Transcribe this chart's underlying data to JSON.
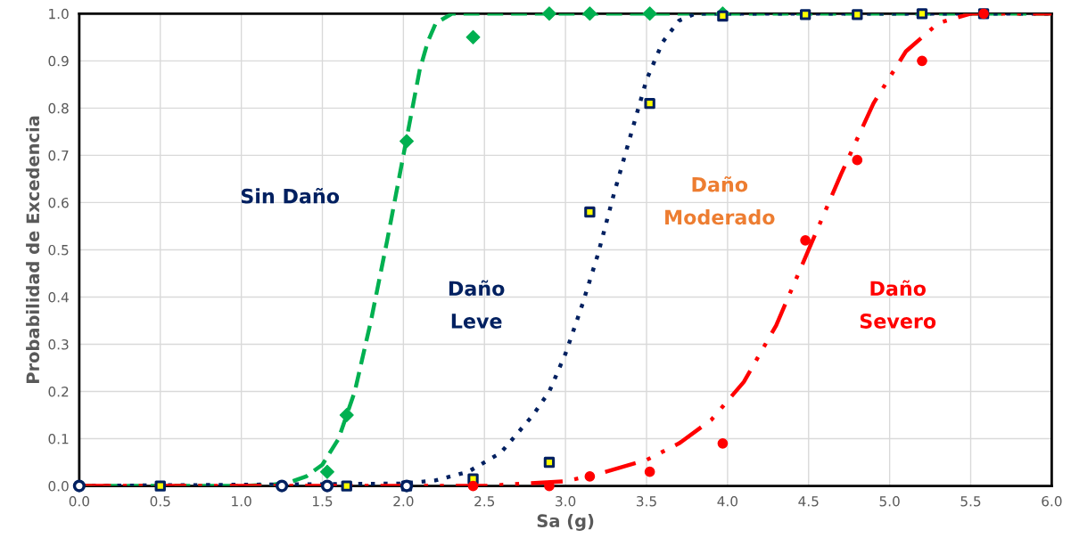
{
  "chart_data": {
    "type": "line",
    "xlabel": "Sa (g)",
    "ylabel": "Probabilidad de Excedencia",
    "xlim": [
      0,
      6
    ],
    "ylim": [
      0,
      1
    ],
    "xticks": [
      {
        "value": 0,
        "label": "0.0"
      },
      {
        "value": 0.5,
        "label": "0.5"
      },
      {
        "value": 1,
        "label": "1.0"
      },
      {
        "value": 1.5,
        "label": "1.5"
      },
      {
        "value": 2,
        "label": "2.0"
      },
      {
        "value": 2.5,
        "label": "2.5"
      },
      {
        "value": 3,
        "label": "3.0"
      },
      {
        "value": 3.5,
        "label": "3.5"
      },
      {
        "value": 4,
        "label": "4.0"
      },
      {
        "value": 4.5,
        "label": "4.5"
      },
      {
        "value": 5,
        "label": "5.0"
      },
      {
        "value": 5.5,
        "label": "5.5"
      },
      {
        "value": 6,
        "label": "6.0"
      }
    ],
    "yticks": [
      {
        "value": 0,
        "label": "0.0"
      },
      {
        "value": 0.1,
        "label": "0.1"
      },
      {
        "value": 0.2,
        "label": "0.2"
      },
      {
        "value": 0.3,
        "label": "0.3"
      },
      {
        "value": 0.4,
        "label": "0.4"
      },
      {
        "value": 0.5,
        "label": "0.5"
      },
      {
        "value": 0.6,
        "label": "0.6"
      },
      {
        "value": 0.7,
        "label": "0.7"
      },
      {
        "value": 0.8,
        "label": "0.8"
      },
      {
        "value": 0.9,
        "label": "0.9"
      },
      {
        "value": 1,
        "label": "1.0"
      }
    ],
    "grid": true,
    "legend": false,
    "annotations": [
      "Sin Daño",
      "Daño\nLeve",
      "Daño\nModerado",
      "Daño\nSevero"
    ],
    "series": [
      {
        "color": "#00b050",
        "line_style": "dashed",
        "marker": "none",
        "x": [
          0,
          1.0,
          1.2,
          1.3,
          1.4,
          1.5,
          1.6,
          1.7,
          1.8,
          1.9,
          2.0,
          2.05,
          2.1,
          2.15,
          2.2,
          2.3,
          6.0
        ],
        "values": [
          0,
          0,
          0.003,
          0.008,
          0.02,
          0.045,
          0.1,
          0.2,
          0.35,
          0.52,
          0.7,
          0.79,
          0.88,
          0.94,
          0.98,
          1.0,
          1.0
        ]
      },
      {
        "color": "#002060",
        "line_style": "dotted",
        "marker": "none",
        "x": [
          0,
          2.0,
          2.2,
          2.4,
          2.6,
          2.8,
          2.9,
          3.0,
          3.1,
          3.2,
          3.3,
          3.4,
          3.5,
          3.6,
          3.7,
          3.8,
          6.0
        ],
        "values": [
          0,
          0.005,
          0.012,
          0.03,
          0.07,
          0.15,
          0.2,
          0.28,
          0.38,
          0.49,
          0.62,
          0.74,
          0.86,
          0.94,
          0.985,
          1.0,
          1.0
        ]
      },
      {
        "color": "#ff0000",
        "line_style": "dashdot",
        "marker": "none",
        "x": [
          0,
          2.5,
          3.0,
          3.2,
          3.5,
          3.7,
          3.9,
          4.1,
          4.3,
          4.5,
          4.7,
          4.9,
          5.1,
          5.3,
          5.5,
          6.0
        ],
        "values": [
          0,
          0,
          0.01,
          0.025,
          0.055,
          0.09,
          0.14,
          0.22,
          0.34,
          0.5,
          0.66,
          0.81,
          0.92,
          0.98,
          1.0,
          1.0
        ]
      },
      {
        "type": "scatter",
        "color": "#00b050",
        "marker": "diamond",
        "x": [
          1.53,
          1.65,
          2.02,
          2.43,
          2.9,
          3.15,
          3.52,
          3.97
        ],
        "values": [
          0.03,
          0.15,
          0.73,
          0.95,
          1.0,
          1.0,
          1.0,
          1.0
        ]
      },
      {
        "type": "scatter",
        "color": "#002060",
        "marker": "square",
        "x": [
          0.5,
          1.65,
          2.02,
          2.43,
          2.9,
          3.15,
          3.52,
          3.97,
          4.48,
          4.8,
          5.2,
          5.58
        ],
        "values": [
          0,
          0,
          0,
          0.015,
          0.05,
          0.58,
          0.81,
          0.995,
          0.998,
          0.998,
          1.0,
          1.0
        ]
      },
      {
        "type": "scatter",
        "color": "#002060",
        "marker": "circle",
        "x": [
          0,
          1.25,
          1.53,
          2.02
        ],
        "values": [
          0,
          0,
          0,
          0
        ]
      },
      {
        "type": "scatter",
        "color": "#ff0000",
        "marker": "circle",
        "x": [
          2.43,
          2.9,
          3.15,
          3.52,
          3.97,
          4.48,
          4.8,
          5.2,
          5.58
        ],
        "values": [
          0,
          0,
          0.02,
          0.03,
          0.09,
          0.52,
          0.69,
          0.9,
          1.0
        ]
      }
    ]
  }
}
